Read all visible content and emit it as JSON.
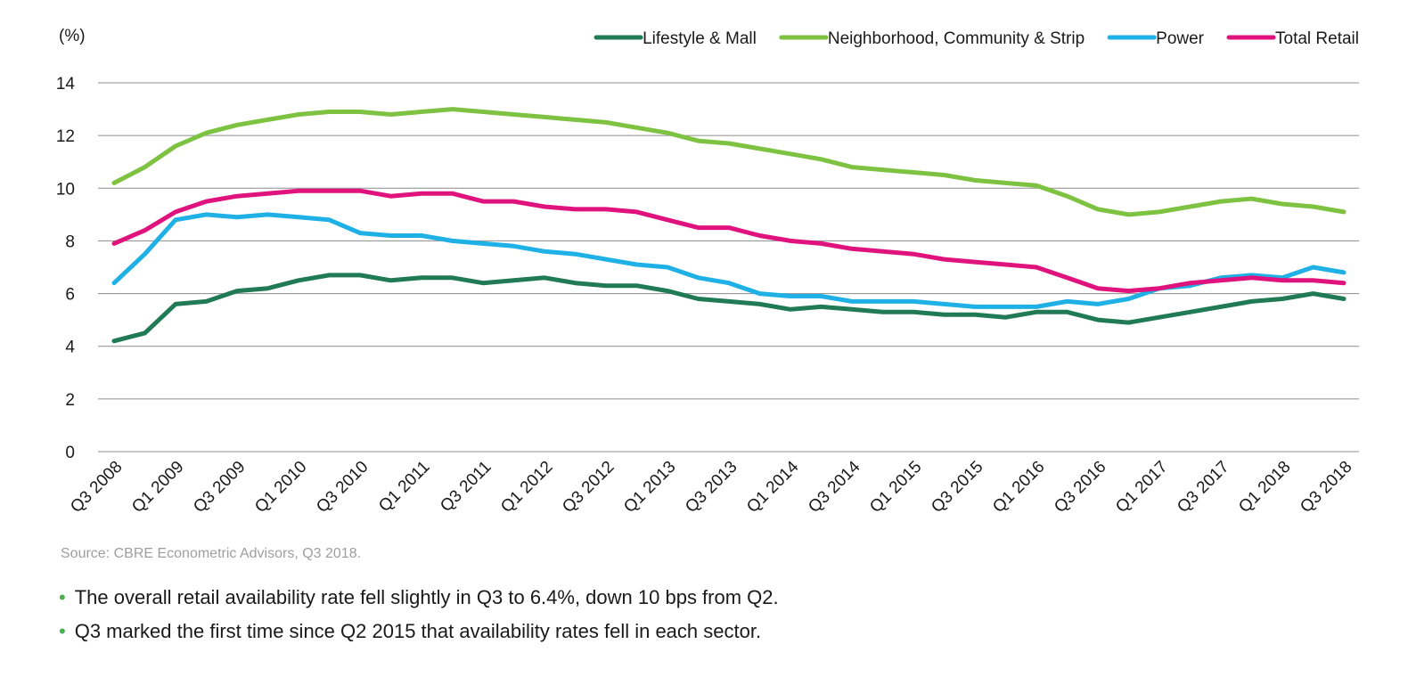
{
  "chart_data": {
    "type": "line",
    "ylabel": "(%)",
    "ylim": [
      0,
      14
    ],
    "yticks": [
      0,
      2,
      4,
      6,
      8,
      10,
      12,
      14
    ],
    "grid": true,
    "legend_position": "top-right",
    "categories": [
      "Q3 2008",
      "Q4 2008",
      "Q1 2009",
      "Q2 2009",
      "Q3 2009",
      "Q4 2009",
      "Q1 2010",
      "Q2 2010",
      "Q3 2010",
      "Q4 2010",
      "Q1 2011",
      "Q2 2011",
      "Q3 2011",
      "Q4 2011",
      "Q1 2012",
      "Q2 2012",
      "Q3 2012",
      "Q4 2012",
      "Q1 2013",
      "Q2 2013",
      "Q3 2013",
      "Q4 2013",
      "Q1 2014",
      "Q2 2014",
      "Q3 2014",
      "Q4 2014",
      "Q1 2015",
      "Q2 2015",
      "Q3 2015",
      "Q4 2015",
      "Q1 2016",
      "Q2 2016",
      "Q3 2016",
      "Q4 2016",
      "Q1 2017",
      "Q2 2017",
      "Q3 2017",
      "Q4 2017",
      "Q1 2018",
      "Q2 2018",
      "Q3 2018"
    ],
    "xtick_labels": [
      "Q3 2008",
      "Q1 2009",
      "Q3 2009",
      "Q1 2010",
      "Q3 2010",
      "Q1 2011",
      "Q3 2011",
      "Q1 2012",
      "Q3 2012",
      "Q1 2013",
      "Q3 2013",
      "Q1 2014",
      "Q3 2014",
      "Q1 2015",
      "Q3 2015",
      "Q1 2016",
      "Q3 2016",
      "Q1 2017",
      "Q3 2017",
      "Q1 2018",
      "Q3 2018"
    ],
    "series": [
      {
        "name": "Lifestyle & Mall",
        "color": "#1f7a55",
        "values": [
          4.2,
          4.5,
          5.6,
          5.7,
          6.1,
          6.2,
          6.5,
          6.7,
          6.7,
          6.5,
          6.6,
          6.6,
          6.4,
          6.5,
          6.6,
          6.4,
          6.3,
          6.3,
          6.1,
          5.8,
          5.7,
          5.6,
          5.4,
          5.5,
          5.4,
          5.3,
          5.3,
          5.2,
          5.2,
          5.1,
          5.3,
          5.3,
          5.0,
          4.9,
          5.1,
          5.3,
          5.5,
          5.7,
          5.8,
          6.0,
          5.8
        ]
      },
      {
        "name": "Neighborhood, Community & Strip",
        "color": "#7dc241",
        "values": [
          10.2,
          10.8,
          11.6,
          12.1,
          12.4,
          12.6,
          12.8,
          12.9,
          12.9,
          12.8,
          12.9,
          13.0,
          12.9,
          12.8,
          12.7,
          12.6,
          12.5,
          12.3,
          12.1,
          11.8,
          11.7,
          11.5,
          11.3,
          11.1,
          10.8,
          10.7,
          10.6,
          10.5,
          10.3,
          10.2,
          10.1,
          9.7,
          9.2,
          9.0,
          9.1,
          9.3,
          9.5,
          9.6,
          9.4,
          9.3,
          9.1
        ]
      },
      {
        "name": "Power",
        "color": "#1fb0e6",
        "values": [
          6.4,
          7.5,
          8.8,
          9.0,
          8.9,
          9.0,
          8.9,
          8.8,
          8.3,
          8.2,
          8.2,
          8.0,
          7.9,
          7.8,
          7.6,
          7.5,
          7.3,
          7.1,
          7.0,
          6.6,
          6.4,
          6.0,
          5.9,
          5.9,
          5.7,
          5.7,
          5.7,
          5.6,
          5.5,
          5.5,
          5.5,
          5.7,
          5.6,
          5.8,
          6.2,
          6.3,
          6.6,
          6.7,
          6.6,
          7.0,
          6.8
        ]
      },
      {
        "name": "Total Retail",
        "color": "#e0137e",
        "values": [
          7.9,
          8.4,
          9.1,
          9.5,
          9.7,
          9.8,
          9.9,
          9.9,
          9.9,
          9.7,
          9.8,
          9.8,
          9.5,
          9.5,
          9.3,
          9.2,
          9.2,
          9.1,
          8.8,
          8.5,
          8.5,
          8.2,
          8.0,
          7.9,
          7.7,
          7.6,
          7.5,
          7.3,
          7.2,
          7.1,
          7.0,
          6.6,
          6.2,
          6.1,
          6.2,
          6.4,
          6.5,
          6.6,
          6.5,
          6.5,
          6.4
        ]
      }
    ]
  },
  "source": "Source: CBRE Econometric Advisors, Q3 2018.",
  "notes": [
    "The overall retail availability rate fell slightly in Q3 to 6.4%, down 10 bps from Q2.",
    "Q3 marked the first time since Q2 2015 that availability rates fell in each sector."
  ],
  "bullet_symbol": "•"
}
